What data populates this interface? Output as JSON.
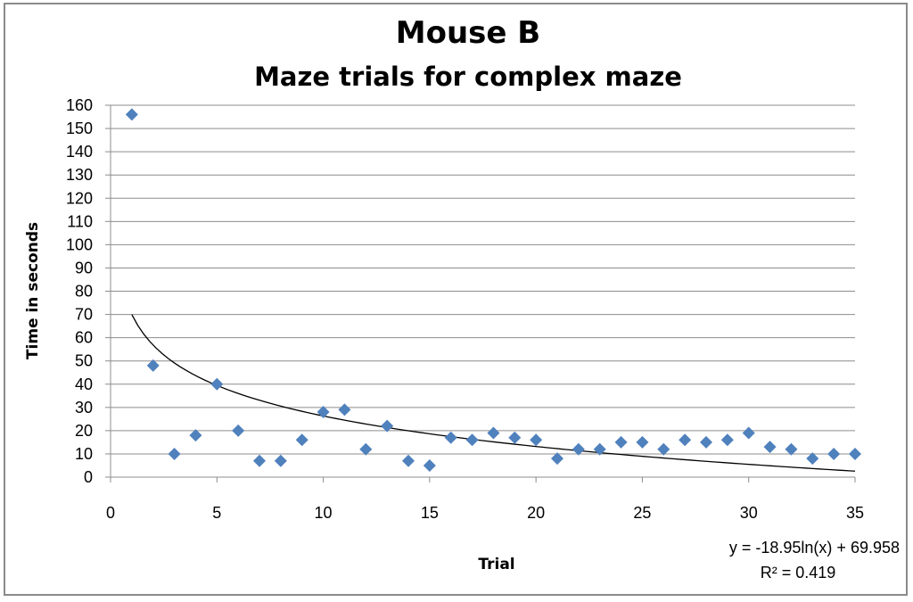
{
  "chart_data": {
    "type": "scatter",
    "title": "Mouse B",
    "subtitle": "Maze trials for complex maze",
    "xlabel": "Trial",
    "ylabel": "Time in seconds",
    "xlim": [
      0,
      35
    ],
    "ylim": [
      0,
      160
    ],
    "x_ticks": [
      0,
      5,
      10,
      15,
      20,
      25,
      30,
      35
    ],
    "y_ticks": [
      0,
      10,
      20,
      30,
      40,
      50,
      60,
      70,
      80,
      90,
      100,
      110,
      120,
      130,
      140,
      150,
      160
    ],
    "grid": "horizontal",
    "marker": "diamond",
    "marker_color": "#4f81bd",
    "trendline_color": "#000000",
    "series": [
      {
        "x": [
          1,
          2,
          3,
          4,
          5,
          6,
          7,
          8,
          9,
          10,
          11,
          12,
          13,
          14,
          15,
          16,
          17,
          18,
          19,
          20,
          21,
          22,
          23,
          24,
          25,
          26,
          27,
          28,
          29,
          30,
          31,
          32,
          33,
          34,
          35
        ],
        "y": [
          156,
          48,
          10,
          18,
          40,
          20,
          7,
          7,
          16,
          28,
          29,
          12,
          22,
          7,
          5,
          17,
          16,
          19,
          17,
          16,
          8,
          12,
          12,
          15,
          15,
          12,
          16,
          15,
          16,
          19,
          13,
          12,
          8,
          10,
          10
        ]
      }
    ],
    "trendline": {
      "type": "logarithmic",
      "a": -18.95,
      "b": 69.958,
      "x_range": [
        1,
        35
      ],
      "equation": "y = -18.95ln(x) + 69.958",
      "r_squared": "R² = 0.419"
    }
  }
}
